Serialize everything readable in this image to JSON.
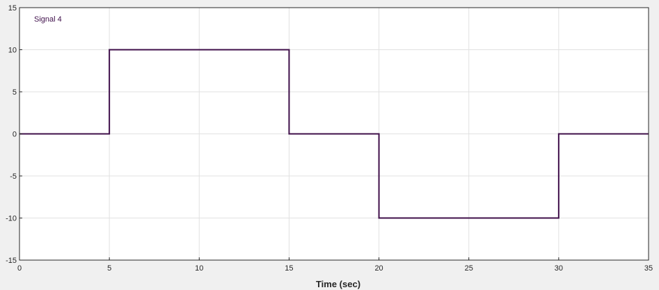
{
  "chart_data": {
    "type": "line",
    "xlabel": "Time (sec)",
    "xlim": [
      0,
      35
    ],
    "ylim": [
      -15,
      15
    ],
    "x_ticks": [
      0,
      5,
      10,
      15,
      20,
      25,
      30,
      35
    ],
    "y_ticks": [
      15,
      10,
      5,
      0,
      -5,
      -10,
      -15
    ],
    "x_tick_labels": [
      "0",
      "5",
      "10",
      "15",
      "20",
      "25",
      "30",
      "35"
    ],
    "y_tick_labels": [
      "15",
      "10",
      "5",
      "0",
      "-5",
      "-10",
      "-15"
    ],
    "grid": true,
    "legend_position": "top-left",
    "series": [
      {
        "name": "Signal 4",
        "color": "#3f0f4a",
        "step": true,
        "x": [
          0,
          5,
          5,
          15,
          15,
          20,
          20,
          30,
          30,
          35
        ],
        "y": [
          0,
          0,
          10,
          10,
          0,
          0,
          -10,
          -10,
          0,
          0
        ]
      }
    ]
  },
  "colors": {
    "figure_background": "#f0f0f0",
    "axes_background": "#ffffff",
    "grid": "#e1e1e1",
    "axis": "#262626"
  }
}
